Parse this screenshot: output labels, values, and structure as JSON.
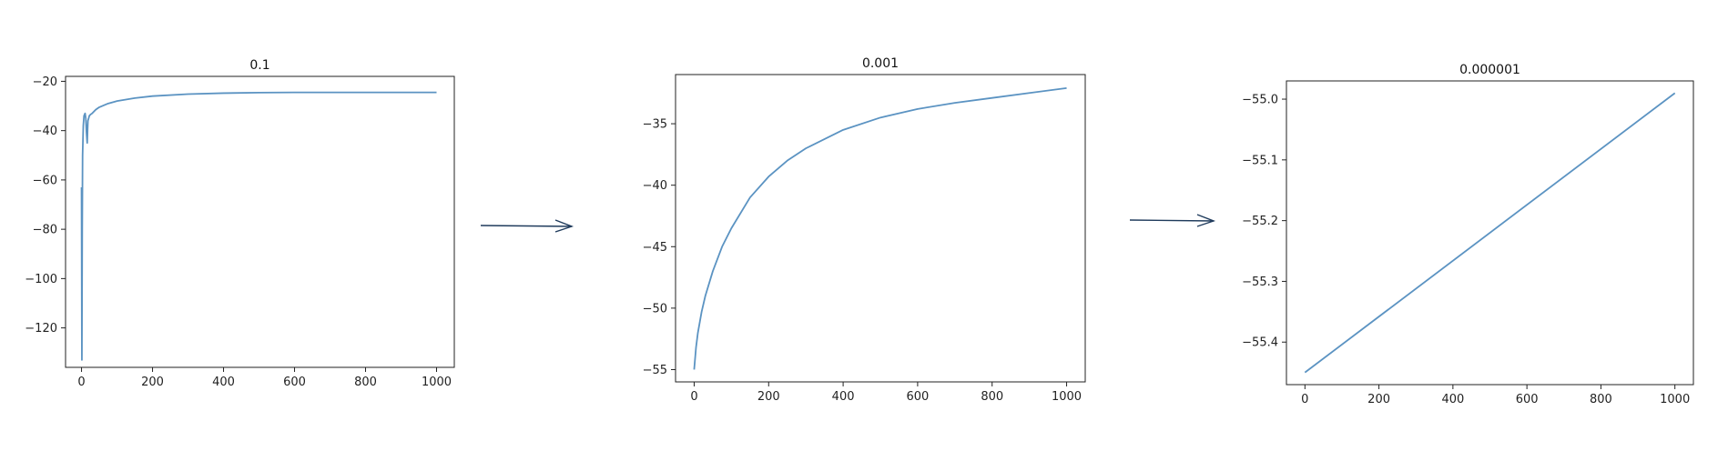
{
  "colors": {
    "line": "#5b93c2",
    "axis": "#222222",
    "arrow": "#1f3b5c"
  },
  "chart_data": [
    {
      "type": "line",
      "title": "0.1",
      "xlabel": "",
      "ylabel": "",
      "xlim": [
        -45,
        1050
      ],
      "ylim": [
        -136,
        -18
      ],
      "xticks": [
        0,
        200,
        400,
        600,
        800,
        1000
      ],
      "yticks": [
        -120,
        -100,
        -80,
        -60,
        -40,
        -20
      ],
      "grid": false,
      "series": [
        {
          "x": [
            0,
            1,
            2,
            3,
            5,
            7,
            10,
            12,
            14,
            16,
            17,
            18,
            20,
            22,
            25,
            30,
            40,
            50,
            75,
            100,
            150,
            200,
            300,
            400,
            500,
            600,
            700,
            800,
            900,
            1000
          ],
          "y": [
            -63,
            -133,
            -80,
            -50,
            -38,
            -34,
            -33,
            -35,
            -41,
            -45,
            -40,
            -36,
            -35,
            -34,
            -33.5,
            -33,
            -31.5,
            -30.5,
            -29,
            -28,
            -26.8,
            -26,
            -25.2,
            -24.8,
            -24.6,
            -24.5,
            -24.5,
            -24.5,
            -24.5,
            -24.5
          ]
        }
      ]
    },
    {
      "type": "line",
      "title": "0.001",
      "xlabel": "",
      "ylabel": "",
      "xlim": [
        -50,
        1050
      ],
      "ylim": [
        -56,
        -31
      ],
      "xticks": [
        0,
        200,
        400,
        600,
        800,
        1000
      ],
      "yticks": [
        -55,
        -50,
        -45,
        -40,
        -35
      ],
      "grid": false,
      "series": [
        {
          "x": [
            0,
            5,
            10,
            20,
            30,
            50,
            75,
            100,
            150,
            200,
            250,
            300,
            400,
            500,
            600,
            700,
            800,
            900,
            1000
          ],
          "y": [
            -55,
            -53.2,
            -52,
            -50.3,
            -49,
            -47,
            -45,
            -43.5,
            -41,
            -39.3,
            -38,
            -37,
            -35.5,
            -34.5,
            -33.8,
            -33.3,
            -32.9,
            -32.5,
            -32.1
          ]
        }
      ]
    },
    {
      "type": "line",
      "title": "0.000001",
      "xlabel": "",
      "ylabel": "",
      "xlim": [
        -50,
        1050
      ],
      "ylim": [
        -55.47,
        -54.97
      ],
      "xticks": [
        0,
        200,
        400,
        600,
        800,
        1000
      ],
      "yticks": [
        -55.4,
        -55.3,
        -55.2,
        -55.1,
        -55.0
      ],
      "grid": false,
      "series": [
        {
          "x": [
            0,
            1000
          ],
          "y": [
            -55.45,
            -54.99
          ]
        }
      ]
    }
  ]
}
